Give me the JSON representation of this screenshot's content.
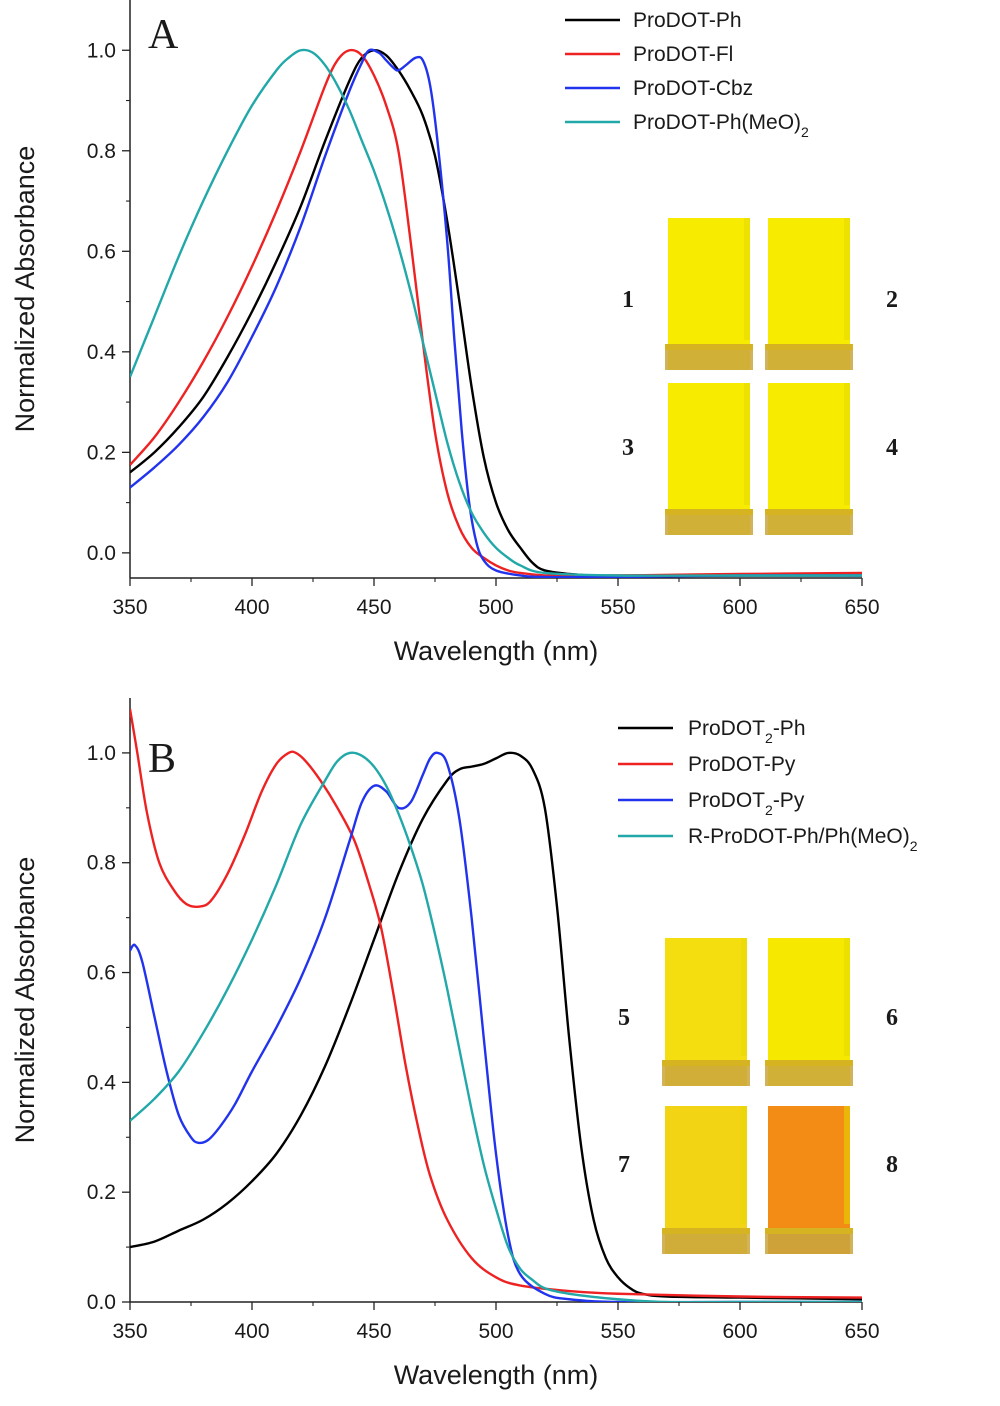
{
  "chart_data": [
    {
      "type": "line",
      "panel_label": "A",
      "xlabel": "Wavelength (nm)",
      "ylabel": "Normalized Absorbance",
      "xlim": [
        350,
        650
      ],
      "ylim": [
        -0.05,
        1.1
      ],
      "xticks": [
        350,
        400,
        450,
        500,
        550,
        600,
        650
      ],
      "yticks": [
        0.0,
        0.2,
        0.4,
        0.6,
        0.8,
        1.0
      ],
      "legend_position": "top-right",
      "grid": false,
      "series": [
        {
          "name": "ProDOT-Ph",
          "name_main": "ProDOT-Ph",
          "name_sub": "",
          "name_tail": "",
          "color": "#000000",
          "x": [
            350,
            360,
            370,
            380,
            390,
            400,
            410,
            420,
            430,
            440,
            445,
            450,
            455,
            460,
            465,
            470,
            475,
            480,
            485,
            490,
            495,
            500,
            505,
            510,
            515,
            520,
            530,
            540,
            560,
            600,
            650
          ],
          "y": [
            0.16,
            0.2,
            0.25,
            0.31,
            0.39,
            0.48,
            0.58,
            0.69,
            0.82,
            0.94,
            0.985,
            1.0,
            0.99,
            0.96,
            0.92,
            0.87,
            0.79,
            0.66,
            0.5,
            0.33,
            0.19,
            0.1,
            0.045,
            0.01,
            -0.02,
            -0.035,
            -0.042,
            -0.045,
            -0.045,
            -0.045,
            -0.045
          ]
        },
        {
          "name": "ProDOT-Fl",
          "name_main": "ProDOT-Fl",
          "name_sub": "",
          "name_tail": "",
          "color": "#ee2222",
          "x": [
            350,
            360,
            370,
            380,
            390,
            400,
            410,
            420,
            430,
            435,
            440,
            445,
            450,
            455,
            460,
            465,
            470,
            475,
            480,
            485,
            490,
            495,
            500,
            505,
            510,
            520,
            530,
            550,
            600,
            650
          ],
          "y": [
            0.175,
            0.23,
            0.3,
            0.38,
            0.47,
            0.57,
            0.68,
            0.8,
            0.93,
            0.98,
            1.0,
            0.99,
            0.95,
            0.89,
            0.8,
            0.62,
            0.42,
            0.24,
            0.12,
            0.05,
            0.01,
            -0.01,
            -0.025,
            -0.035,
            -0.04,
            -0.045,
            -0.045,
            -0.045,
            -0.042,
            -0.04
          ]
        },
        {
          "name": "ProDOT-Cbz",
          "name_main": "ProDOT-Cbz",
          "name_sub": "",
          "name_tail": "",
          "color": "#2233ee",
          "x": [
            350,
            360,
            370,
            380,
            390,
            400,
            410,
            420,
            430,
            440,
            445,
            448,
            452,
            455,
            458,
            460,
            463,
            467,
            470,
            473,
            476,
            480,
            483,
            486,
            489,
            492,
            495,
            500,
            510,
            520,
            550,
            600,
            650
          ],
          "y": [
            0.13,
            0.17,
            0.215,
            0.27,
            0.34,
            0.43,
            0.53,
            0.65,
            0.79,
            0.92,
            0.975,
            1.0,
            0.995,
            0.98,
            0.965,
            0.96,
            0.97,
            0.985,
            0.98,
            0.93,
            0.82,
            0.62,
            0.42,
            0.24,
            0.1,
            0.02,
            -0.015,
            -0.035,
            -0.045,
            -0.048,
            -0.048,
            -0.045,
            -0.045
          ]
        },
        {
          "name": "ProDOT-Ph(MeO)2",
          "name_main": "ProDOT-Ph(MeO)",
          "name_sub": "2",
          "name_tail": "",
          "color": "#22a8a8",
          "x": [
            350,
            355,
            360,
            370,
            380,
            390,
            400,
            410,
            415,
            420,
            425,
            430,
            435,
            440,
            445,
            450,
            455,
            460,
            465,
            470,
            475,
            480,
            485,
            490,
            495,
            500,
            505,
            510,
            520,
            550,
            600,
            650
          ],
          "y": [
            0.35,
            0.41,
            0.47,
            0.59,
            0.7,
            0.8,
            0.89,
            0.96,
            0.985,
            1.0,
            0.995,
            0.97,
            0.93,
            0.88,
            0.82,
            0.76,
            0.69,
            0.61,
            0.52,
            0.42,
            0.32,
            0.22,
            0.14,
            0.08,
            0.04,
            0.01,
            -0.01,
            -0.025,
            -0.04,
            -0.045,
            -0.045,
            -0.045
          ]
        }
      ]
    },
    {
      "type": "line",
      "panel_label": "B",
      "xlabel": "Wavelength (nm)",
      "ylabel": "Normalized Absorbance",
      "xlim": [
        350,
        650
      ],
      "ylim": [
        0.0,
        1.1
      ],
      "xticks": [
        350,
        400,
        450,
        500,
        550,
        600,
        650
      ],
      "yticks": [
        0.0,
        0.2,
        0.4,
        0.6,
        0.8,
        1.0
      ],
      "legend_position": "top-right",
      "grid": false,
      "series": [
        {
          "name": "ProDOT2-Ph",
          "name_main": "ProDOT",
          "name_sub": "2",
          "name_tail": "-Ph",
          "color": "#000000",
          "x": [
            350,
            360,
            370,
            380,
            390,
            400,
            410,
            420,
            430,
            440,
            450,
            460,
            470,
            480,
            485,
            490,
            495,
            500,
            505,
            510,
            515,
            520,
            525,
            530,
            535,
            540,
            545,
            550,
            555,
            560,
            570,
            600,
            650
          ],
          "y": [
            0.1,
            0.11,
            0.13,
            0.15,
            0.18,
            0.22,
            0.27,
            0.34,
            0.43,
            0.54,
            0.66,
            0.78,
            0.88,
            0.95,
            0.97,
            0.975,
            0.98,
            0.99,
            1.0,
            0.995,
            0.97,
            0.9,
            0.72,
            0.48,
            0.28,
            0.15,
            0.08,
            0.045,
            0.025,
            0.015,
            0.01,
            0.008,
            0.005
          ]
        },
        {
          "name": "ProDOT-Py",
          "name_main": "ProDOT-Py",
          "name_sub": "",
          "name_tail": "",
          "color": "#ee2222",
          "x": [
            350,
            353,
            357,
            362,
            368,
            373,
            378,
            383,
            390,
            397,
            404,
            410,
            415,
            418,
            422,
            428,
            435,
            442,
            448,
            453,
            458,
            463,
            468,
            473,
            480,
            490,
            500,
            510,
            530,
            550,
            600,
            650
          ],
          "y": [
            1.08,
            1.0,
            0.89,
            0.8,
            0.75,
            0.725,
            0.72,
            0.73,
            0.78,
            0.85,
            0.93,
            0.98,
            1.0,
            1.0,
            0.985,
            0.95,
            0.9,
            0.84,
            0.76,
            0.68,
            0.56,
            0.43,
            0.32,
            0.23,
            0.15,
            0.08,
            0.045,
            0.03,
            0.02,
            0.015,
            0.01,
            0.008
          ]
        },
        {
          "name": "ProDOT2-Py",
          "name_main": "ProDOT",
          "name_sub": "2",
          "name_tail": "-Py",
          "color": "#2233ee",
          "x": [
            350,
            352,
            355,
            360,
            365,
            370,
            375,
            378,
            382,
            387,
            393,
            400,
            410,
            420,
            430,
            440,
            445,
            450,
            455,
            460,
            465,
            470,
            473,
            476,
            480,
            485,
            490,
            495,
            500,
            505,
            510,
            520,
            530,
            550,
            600,
            650
          ],
          "y": [
            0.64,
            0.65,
            0.62,
            0.52,
            0.42,
            0.34,
            0.3,
            0.29,
            0.295,
            0.32,
            0.36,
            0.42,
            0.5,
            0.59,
            0.7,
            0.84,
            0.91,
            0.94,
            0.93,
            0.9,
            0.91,
            0.96,
            0.99,
            1.0,
            0.98,
            0.88,
            0.7,
            0.48,
            0.27,
            0.12,
            0.05,
            0.015,
            0.005,
            0.0,
            0.0,
            0.0
          ]
        },
        {
          "name": "R-ProDOT-Ph/Ph(MeO)2",
          "name_main": "R-ProDOT-Ph/Ph(MeO)",
          "name_sub": "2",
          "name_tail": "",
          "color": "#22a8a8",
          "x": [
            350,
            360,
            370,
            380,
            390,
            400,
            410,
            420,
            430,
            435,
            440,
            445,
            450,
            455,
            460,
            465,
            470,
            475,
            480,
            485,
            490,
            495,
            500,
            505,
            510,
            515,
            520,
            530,
            550,
            570,
            600,
            650
          ],
          "y": [
            0.33,
            0.37,
            0.42,
            0.49,
            0.57,
            0.66,
            0.76,
            0.87,
            0.95,
            0.985,
            1.0,
            0.995,
            0.975,
            0.94,
            0.89,
            0.83,
            0.76,
            0.67,
            0.57,
            0.46,
            0.35,
            0.25,
            0.17,
            0.1,
            0.06,
            0.04,
            0.025,
            0.015,
            0.005,
            0.0,
            0.0,
            0.0
          ]
        }
      ]
    }
  ],
  "vials": [
    {
      "label": "1",
      "color": "#f7ec00"
    },
    {
      "label": "2",
      "color": "#f7ec00"
    },
    {
      "label": "3",
      "color": "#f7ec00"
    },
    {
      "label": "4",
      "color": "#f7ec00"
    },
    {
      "label": "5",
      "color": "#f5de10"
    },
    {
      "label": "6",
      "color": "#f7e800"
    },
    {
      "label": "7",
      "color": "#f3d414"
    },
    {
      "label": "8",
      "color": "#f28c14"
    }
  ]
}
